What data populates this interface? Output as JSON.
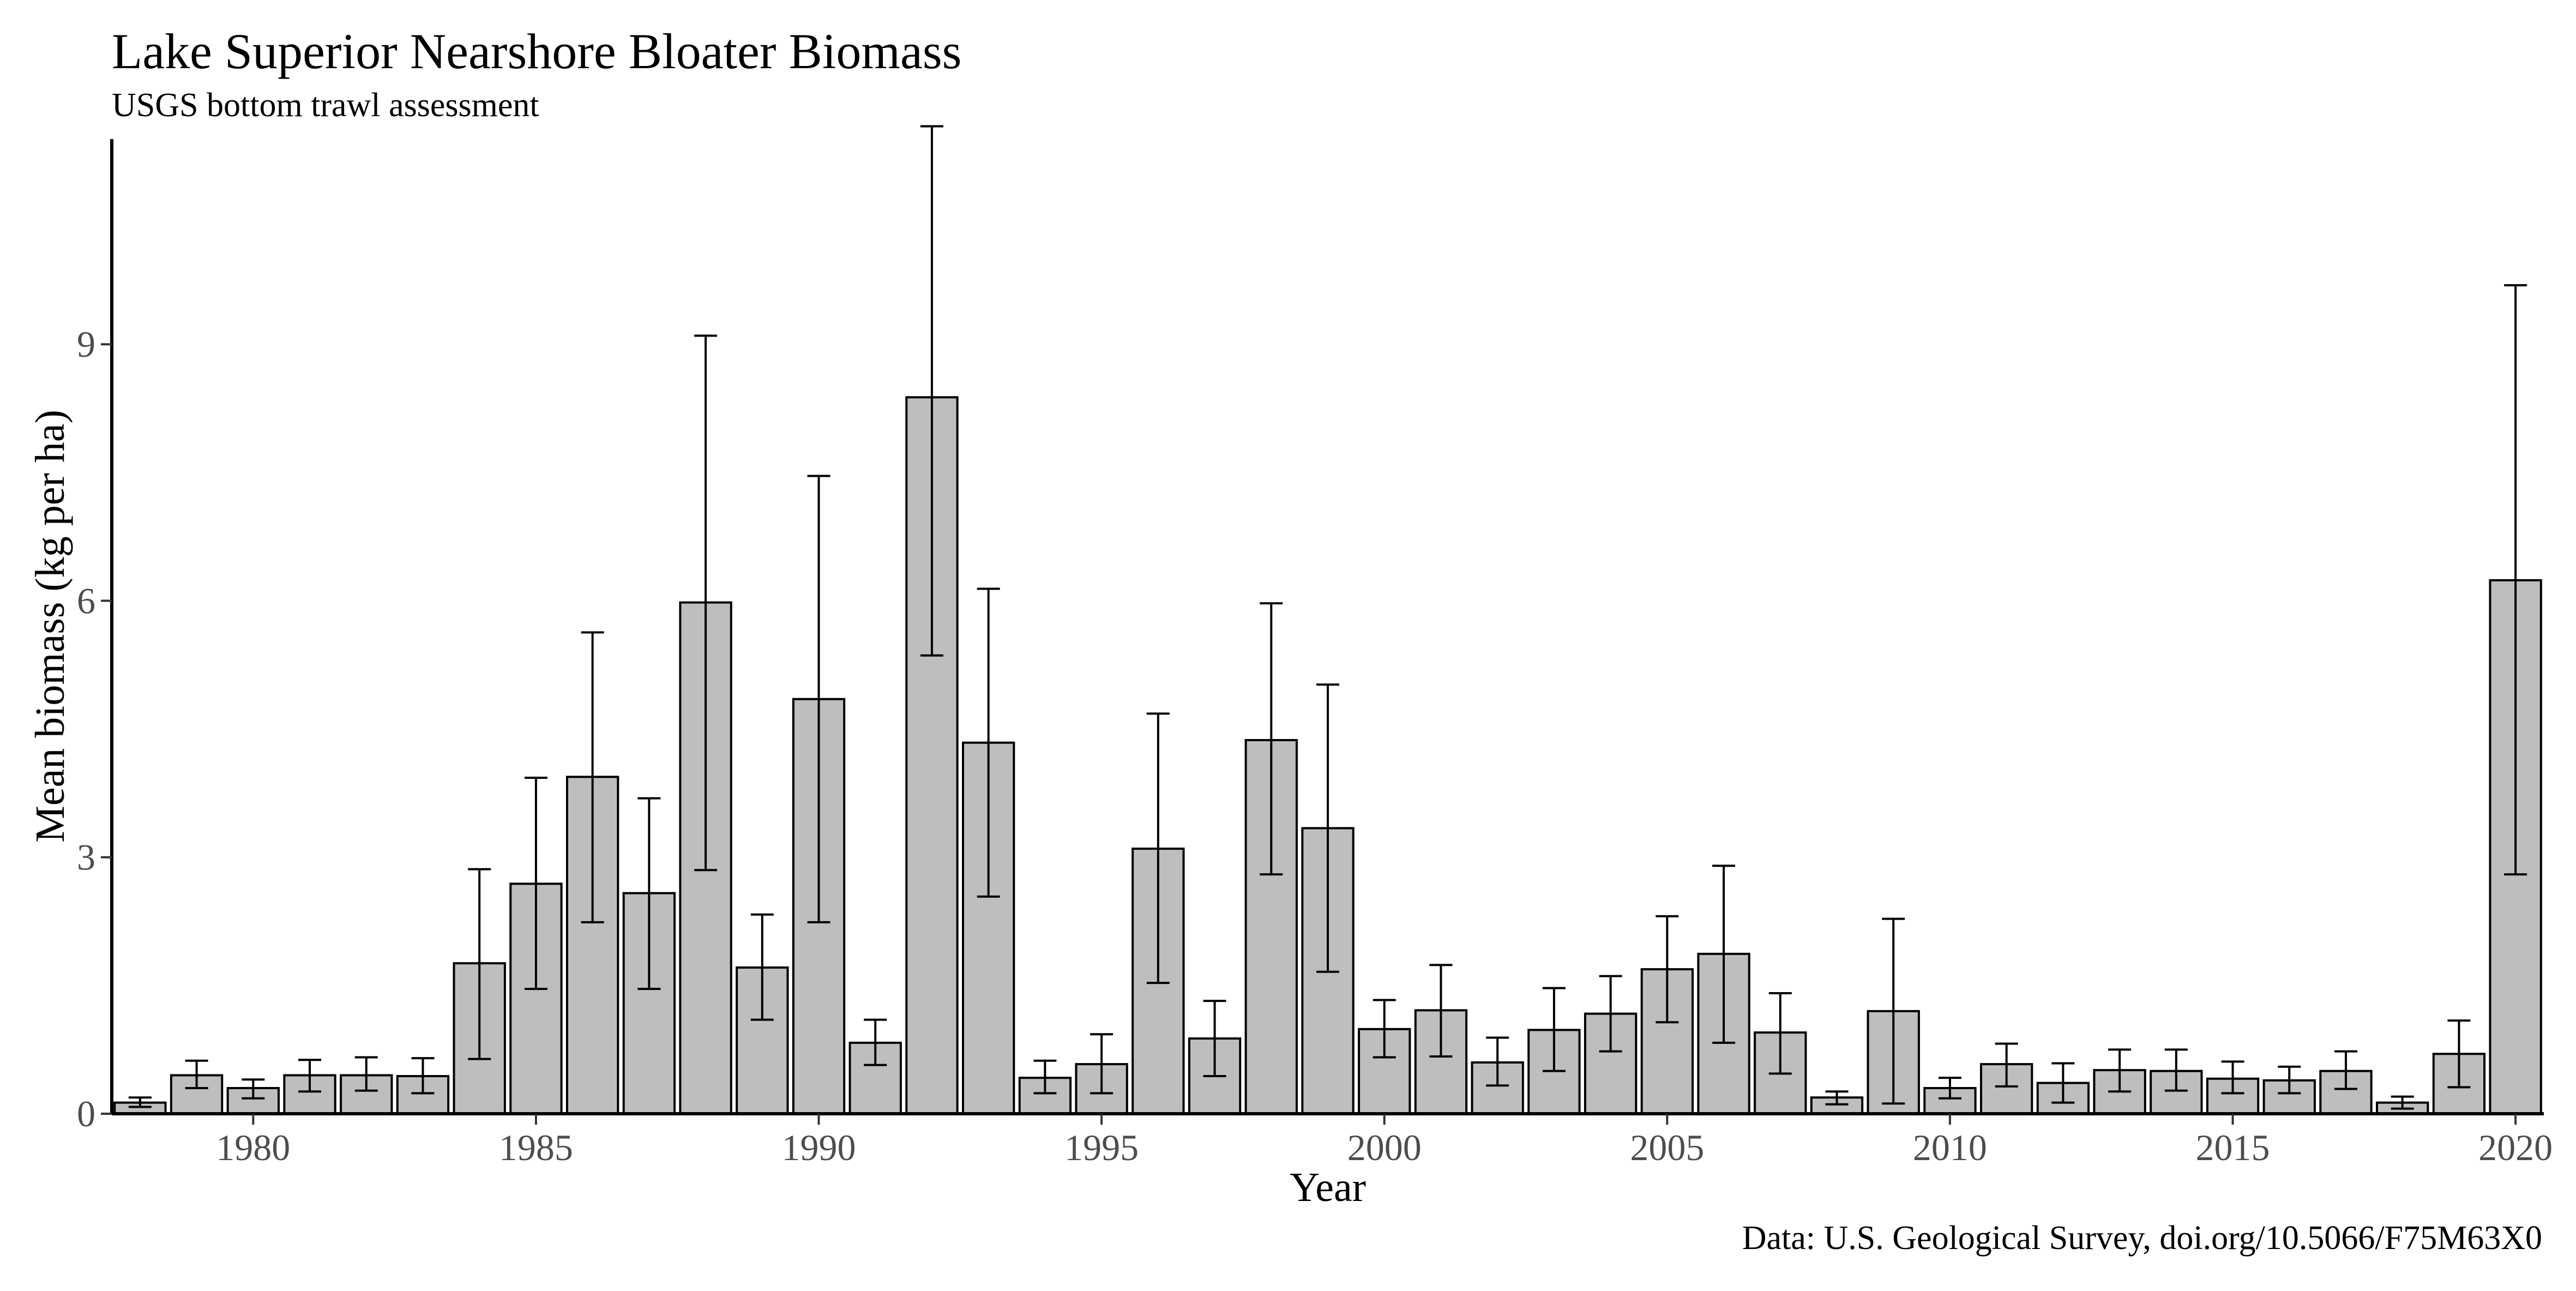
{
  "chart_data": {
    "type": "bar",
    "title": "Lake Superior Nearshore Bloater Biomass",
    "subtitle": "USGS bottom trawl assessment",
    "xlabel": "Year",
    "ylabel": "Mean biomass (kg per ha)",
    "caption": "Data: U.S. Geological Survey, doi.org/10.5066/F75M63X0",
    "xlim": [
      1977.5,
      2020.5
    ],
    "ylim": [
      0,
      11.4
    ],
    "x_ticks": [
      1980,
      1985,
      1990,
      1995,
      2000,
      2005,
      2010,
      2015,
      2020
    ],
    "y_ticks": [
      0,
      3,
      6,
      9
    ],
    "grid": false,
    "bar_fill": "#bebebe",
    "bar_edge": "#000000",
    "error_bars": true,
    "years": [
      1978,
      1979,
      1980,
      1981,
      1982,
      1983,
      1984,
      1985,
      1986,
      1987,
      1988,
      1989,
      1990,
      1991,
      1992,
      1993,
      1994,
      1995,
      1996,
      1997,
      1998,
      1999,
      2000,
      2001,
      2002,
      2003,
      2004,
      2005,
      2006,
      2007,
      2008,
      2009,
      2010,
      2011,
      2012,
      2013,
      2014,
      2015,
      2016,
      2017,
      2018,
      2019,
      2020
    ],
    "values": [
      0.13,
      0.45,
      0.3,
      0.45,
      0.45,
      0.44,
      1.76,
      2.69,
      3.94,
      2.58,
      5.98,
      1.71,
      4.85,
      0.83,
      8.38,
      4.34,
      0.42,
      0.58,
      3.1,
      0.88,
      4.37,
      3.34,
      0.99,
      1.21,
      0.6,
      0.98,
      1.17,
      1.69,
      1.87,
      0.95,
      0.19,
      1.2,
      0.3,
      0.58,
      0.36,
      0.51,
      0.5,
      0.41,
      0.39,
      0.5,
      0.13,
      0.7,
      6.24
    ],
    "error_low": [
      0.08,
      0.3,
      0.18,
      0.26,
      0.27,
      0.24,
      0.64,
      1.46,
      2.24,
      1.46,
      2.85,
      1.1,
      2.24,
      0.57,
      5.36,
      2.54,
      0.24,
      0.24,
      1.53,
      0.44,
      2.8,
      1.66,
      0.66,
      0.67,
      0.33,
      0.5,
      0.73,
      1.07,
      0.83,
      0.47,
      0.11,
      0.12,
      0.18,
      0.32,
      0.13,
      0.26,
      0.27,
      0.24,
      0.24,
      0.29,
      0.06,
      0.31,
      2.8
    ],
    "error_high": [
      0.19,
      0.62,
      0.4,
      0.63,
      0.66,
      0.65,
      2.86,
      3.93,
      5.63,
      3.69,
      9.1,
      2.33,
      7.46,
      1.1,
      11.55,
      6.14,
      0.62,
      0.93,
      4.68,
      1.32,
      5.97,
      5.02,
      1.33,
      1.74,
      0.89,
      1.47,
      1.61,
      2.31,
      2.9,
      1.41,
      0.26,
      2.28,
      0.42,
      0.82,
      0.59,
      0.75,
      0.75,
      0.61,
      0.55,
      0.73,
      0.2,
      1.09,
      9.69
    ]
  }
}
